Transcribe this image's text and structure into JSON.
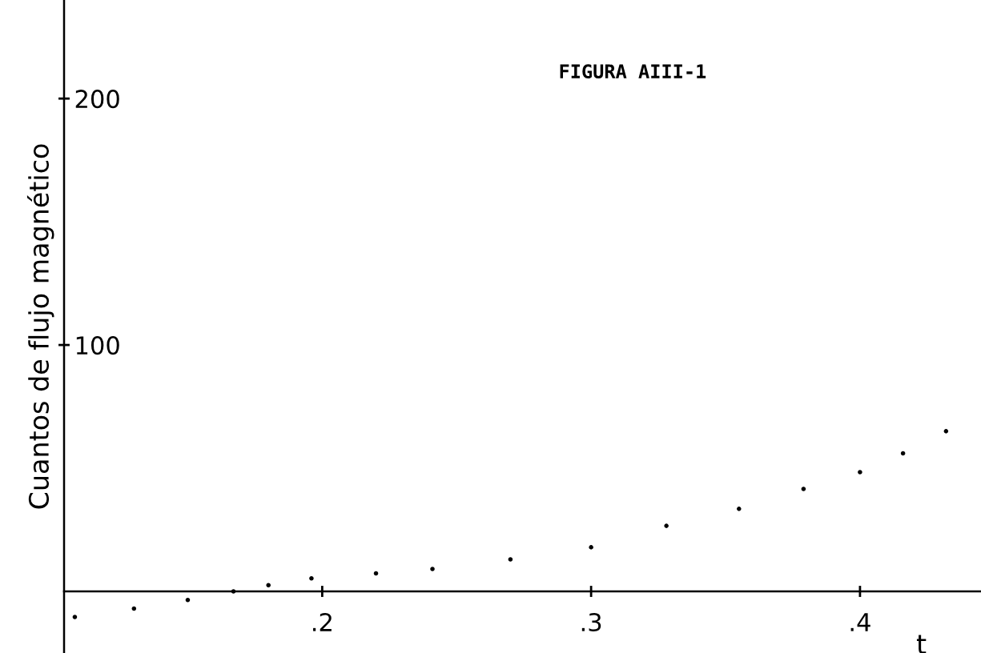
{
  "chart_data": {
    "type": "scatter",
    "title": "FIGURA AIII-1",
    "xlabel": "t",
    "ylabel": "Cuantos de flujo magnético",
    "x": [
      0.108,
      0.13,
      0.15,
      0.167,
      0.18,
      0.196,
      0.22,
      0.241,
      0.27,
      0.3,
      0.328,
      0.355,
      0.379,
      0.4,
      0.416,
      0.432
    ],
    "series": [
      {
        "color": "#000000",
        "values": [
          -10.4,
          -7,
          -3.5,
          0,
          2.5,
          5.3,
          7.3,
          9.1,
          13,
          17.9,
          26.6,
          33.5,
          41.6,
          48.4,
          56,
          65
        ]
      }
    ],
    "xlim": [
      0.104,
      0.445
    ],
    "ylim": [
      -25,
      240
    ],
    "xticks": [
      {
        "value": 0.2,
        "label": ".2"
      },
      {
        "value": 0.3,
        "label": ".3"
      },
      {
        "value": 0.4,
        "label": ".4"
      }
    ],
    "yticks": [
      100,
      200
    ],
    "grid": false,
    "marker": "circle"
  }
}
